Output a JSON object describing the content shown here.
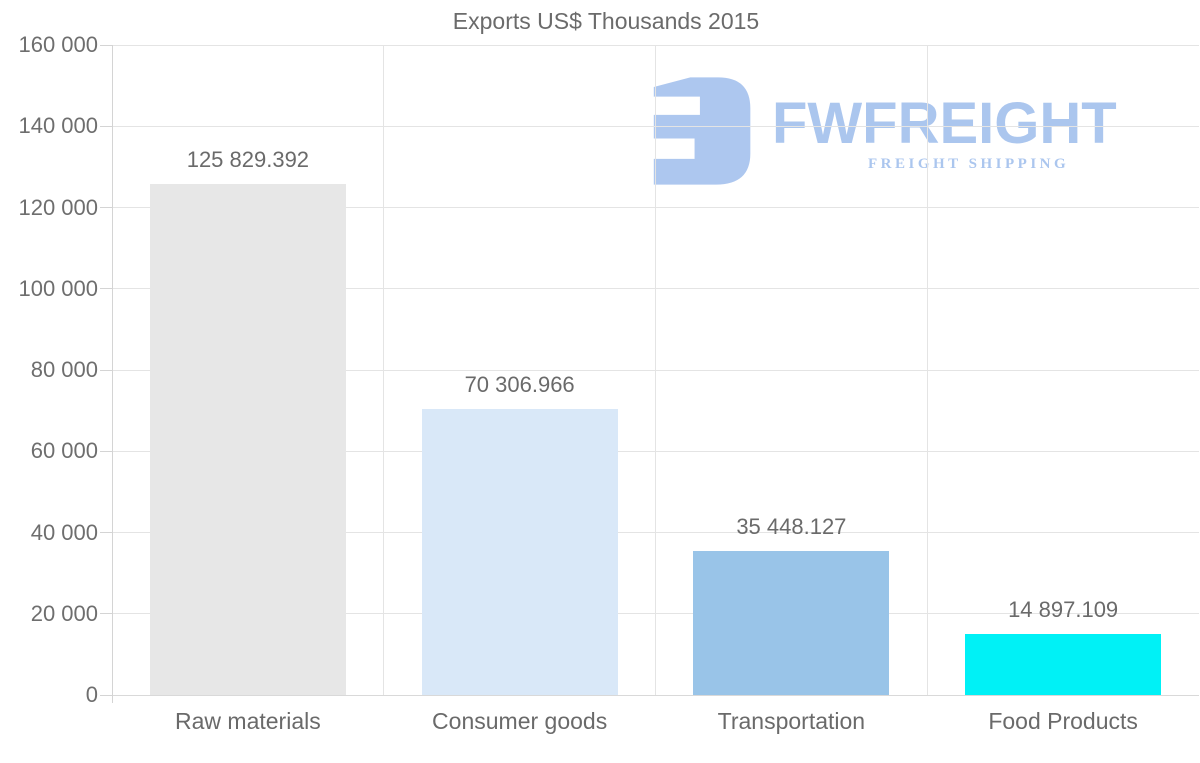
{
  "title": "Exports US$ Thousands 2015",
  "chart_data": {
    "type": "bar",
    "title": "Exports US$ Thousands 2015",
    "categories": [
      "Raw materials",
      "Consumer goods",
      "Transportation",
      "Food Products"
    ],
    "values": [
      125829.392,
      70306.966,
      35448.127,
      14897.109
    ],
    "value_labels": [
      "125 829.392",
      "70 306.966",
      "35 448.127",
      "14 897.109"
    ],
    "bar_colors": [
      "#e7e7e7",
      "#d9e8f8",
      "#99c4e8",
      "#00f1f6"
    ],
    "xlabel": "",
    "ylabel": "",
    "ylim": [
      0,
      160000
    ],
    "ytick_step": 20000,
    "ytick_labels": [
      "0",
      "20 000",
      "40 000",
      "60 000",
      "80 000",
      "100 000",
      "120 000",
      "140 000",
      "160 000"
    ],
    "grid": "horizontal gridlines plus vertical category-boundary gridlines",
    "legend": "none"
  },
  "watermark": {
    "brand": "FWFREIGHT",
    "tagline": "FREIGHT SHIPPING",
    "color": "#a7c3ee",
    "icon": "fwfreight-logo-icon"
  },
  "colors": {
    "text": "#6b6b6b",
    "gridline": "#e4e4e4",
    "axis": "#d4d4d4",
    "background": "#ffffff"
  }
}
